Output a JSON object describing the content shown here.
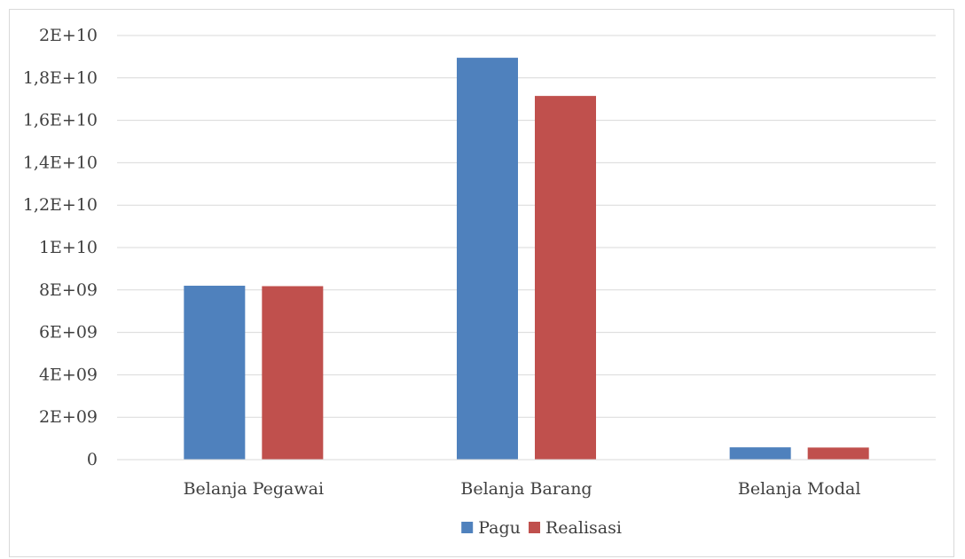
{
  "chart_data": {
    "type": "bar",
    "title": "",
    "xlabel": "",
    "ylabel": "",
    "categories": [
      "Belanja Pegawai",
      "Belanja Barang",
      "Belanja Modal"
    ],
    "series": [
      {
        "name": "Pagu",
        "color": "#4f81bd",
        "values": [
          8200000000,
          18950000000,
          580000000
        ]
      },
      {
        "name": "Realisasi",
        "color": "#c0504d",
        "values": [
          8180000000,
          17150000000,
          570000000
        ]
      }
    ],
    "ylim": [
      0,
      20000000000
    ],
    "yticks": [
      {
        "value": 0,
        "label": "0"
      },
      {
        "value": 2000000000,
        "label": "2E+09"
      },
      {
        "value": 4000000000,
        "label": "4E+09"
      },
      {
        "value": 6000000000,
        "label": "6E+09"
      },
      {
        "value": 8000000000,
        "label": "8E+09"
      },
      {
        "value": 10000000000,
        "label": "1E+10"
      },
      {
        "value": 12000000000,
        "label": "1,2E+10"
      },
      {
        "value": 14000000000,
        "label": "1,4E+10"
      },
      {
        "value": 16000000000,
        "label": "1,6E+10"
      },
      {
        "value": 18000000000,
        "label": "1,8E+10"
      },
      {
        "value": 20000000000,
        "label": "2E+10"
      }
    ],
    "grid": true,
    "legend_position": "bottom",
    "gridline_color": "#d9d9d9",
    "text_color": "#404040"
  }
}
